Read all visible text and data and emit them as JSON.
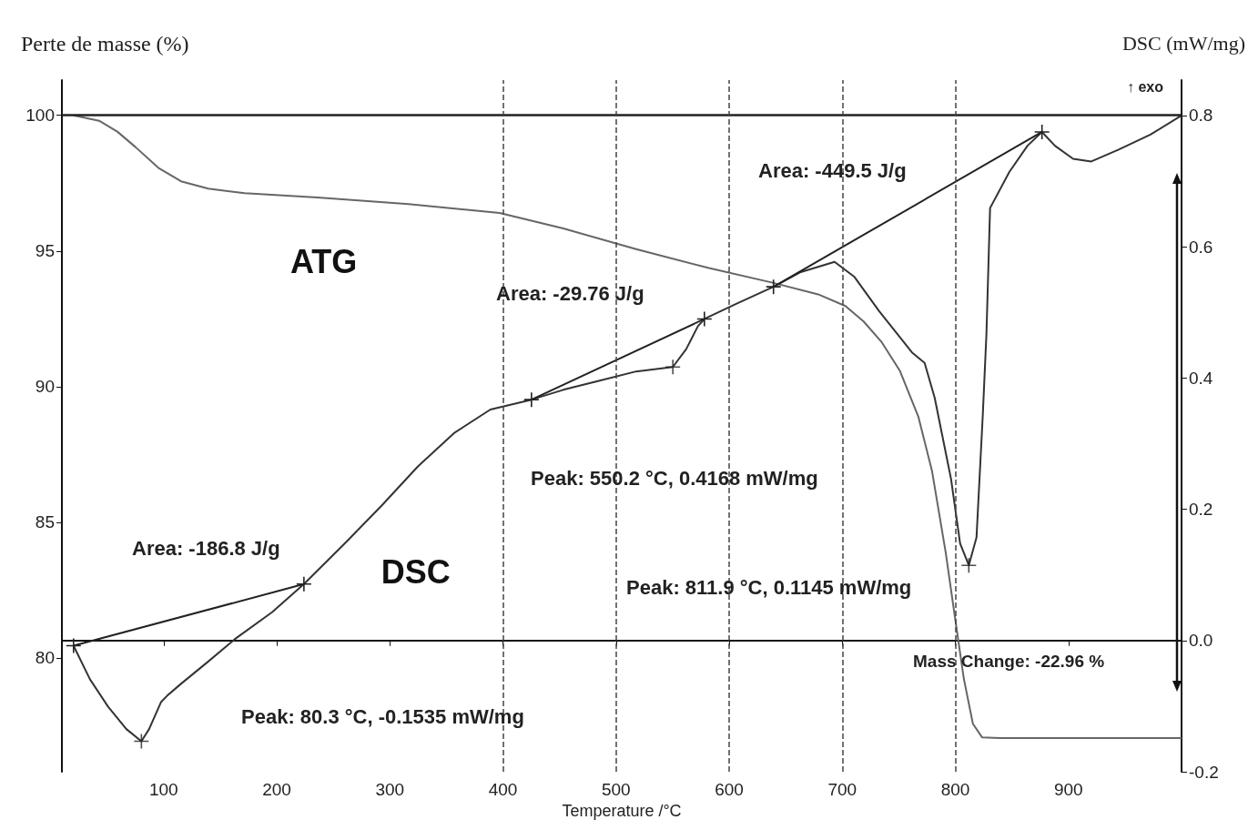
{
  "chart_data": {
    "type": "line",
    "xlabel": "Temperature /°C",
    "ylabel": "Perte de masse (%)",
    "y2label": "DSC (mW/mg)",
    "xlim": [
      10,
      1000
    ],
    "xticks": [
      100,
      200,
      300,
      400,
      500,
      600,
      700,
      800,
      900
    ],
    "ylim": [
      75.8,
      101.3
    ],
    "yticks": [
      80,
      85,
      90,
      95,
      100
    ],
    "y2lim": [
      -0.2,
      0.854
    ],
    "y2ticks": [
      {
        "value": -0.2,
        "label": "-0.2"
      },
      {
        "value": 0,
        "label": "0.0"
      },
      {
        "value": 0.2,
        "label": "0.2"
      },
      {
        "value": 0.4,
        "label": "0.4"
      },
      {
        "value": 0.6,
        "label": "0.6"
      },
      {
        "value": 0.8,
        "label": "0.8"
      }
    ],
    "grid": false,
    "legend": false,
    "series": [
      {
        "name": "ATG",
        "color": "#666666",
        "x": [
          20.3,
          42.9,
          59.0,
          75.1,
          95.2,
          115.3,
          139.4,
          171.6,
          236.1,
          316.5,
          397.0,
          453.3,
          517.7,
          582.1,
          638.4,
          678.7,
          702.8,
          718.9,
          735.0,
          751.1,
          767.2,
          779.3,
          791.4,
          799.4,
          807.5,
          815.5,
          823.6,
          839.7,
          920.2,
          1000
        ],
        "values": [
          100,
          99.8,
          99.4,
          98.83,
          98.07,
          97.57,
          97.3,
          97.13,
          96.97,
          96.73,
          96.4,
          95.83,
          95.07,
          94.37,
          93.83,
          93.4,
          92.97,
          92.4,
          91.63,
          90.57,
          88.9,
          86.9,
          83.9,
          81.57,
          79.23,
          77.57,
          77.07,
          77.04,
          77.04,
          77.04
        ]
      },
      {
        "name": "DSC",
        "color": "#333333",
        "axis": "y2",
        "x": [
          20.3,
          34.8,
          50.9,
          67.0,
          80.3,
          87.1,
          97.6,
          103.2,
          115.3,
          139.4,
          163.6,
          195.8,
          224.0,
          260.2,
          292.4,
          324.6,
          356.7,
          388.9,
          425.2,
          453.3,
          485.5,
          517.7,
          550.2,
          562.0,
          572.4,
          578.1,
          606.2,
          639.2,
          662.6,
          693.2,
          710.8,
          732.6,
          761.6,
          772.8,
          781.7,
          796.2,
          804.2,
          811.9,
          818.7,
          824.3,
          827.5,
          830.7,
          847.7,
          863.8,
          876.6,
          888.0,
          904.1,
          920.2,
          944.4,
          972.5,
          1000
        ],
        "values": [
          -0.008,
          -0.059,
          -0.101,
          -0.135,
          -0.1535,
          -0.135,
          -0.094,
          -0.084,
          -0.066,
          -0.032,
          0.003,
          0.043,
          0.086,
          0.148,
          0.205,
          0.265,
          0.316,
          0.352,
          0.367,
          0.382,
          0.396,
          0.41,
          0.4168,
          0.444,
          0.479,
          0.49,
          0.513,
          0.539,
          0.561,
          0.577,
          0.554,
          0.502,
          0.439,
          0.423,
          0.37,
          0.246,
          0.148,
          0.1145,
          0.157,
          0.345,
          0.468,
          0.659,
          0.714,
          0.754,
          0.775,
          0.754,
          0.734,
          0.73,
          0.748,
          0.771,
          0.8
        ]
      },
      {
        "color": "#222222",
        "axis": "y2",
        "marker": "cross",
        "x": [
          20.3,
          224.0
        ],
        "values": [
          -0.008,
          0.086
        ]
      },
      {
        "color": "#222222",
        "axis": "y2",
        "marker": "cross",
        "x": [
          425.2,
          578.1
        ],
        "values": [
          0.367,
          0.49
        ]
      },
      {
        "color": "#222222",
        "axis": "y2",
        "marker": "cross",
        "x": [
          639.2,
          876.6
        ],
        "values": [
          0.539,
          0.775
        ]
      },
      {
        "type": "scatter",
        "color": "#222222",
        "axis": "y2",
        "marker": "cross",
        "x": [
          80.3,
          550.2,
          811.9
        ],
        "values": [
          -0.1535,
          0.4168,
          0.1145
        ]
      }
    ],
    "ref_lines": [
      {
        "axis": "y",
        "value": 100,
        "color": "#222222",
        "line_style": "solid"
      },
      {
        "axis": "x",
        "value": 400,
        "color": "#444444",
        "line_style": "dashed"
      },
      {
        "axis": "x",
        "value": 500,
        "color": "#444444",
        "line_style": "dashed"
      },
      {
        "axis": "x",
        "value": 600,
        "color": "#444444",
        "line_style": "dashed"
      },
      {
        "axis": "x",
        "value": 700,
        "color": "#444444",
        "line_style": "dashed"
      },
      {
        "axis": "x",
        "value": 800,
        "color": "#444444",
        "line_style": "dashed"
      }
    ],
    "annotations": [
      "Area: -186.8 J/g",
      "Peak: 80.3 °C, -0.1535 mW/mg",
      "Area: -29.76 J/g",
      "Peak: 550.2 °C, 0.4168 mW/mg",
      "Area: -449.5 J/g",
      "Peak: 811.9 °C, 0.1145 mW/mg",
      "Mass Change: -22.96 %",
      "↑ exo"
    ]
  }
}
